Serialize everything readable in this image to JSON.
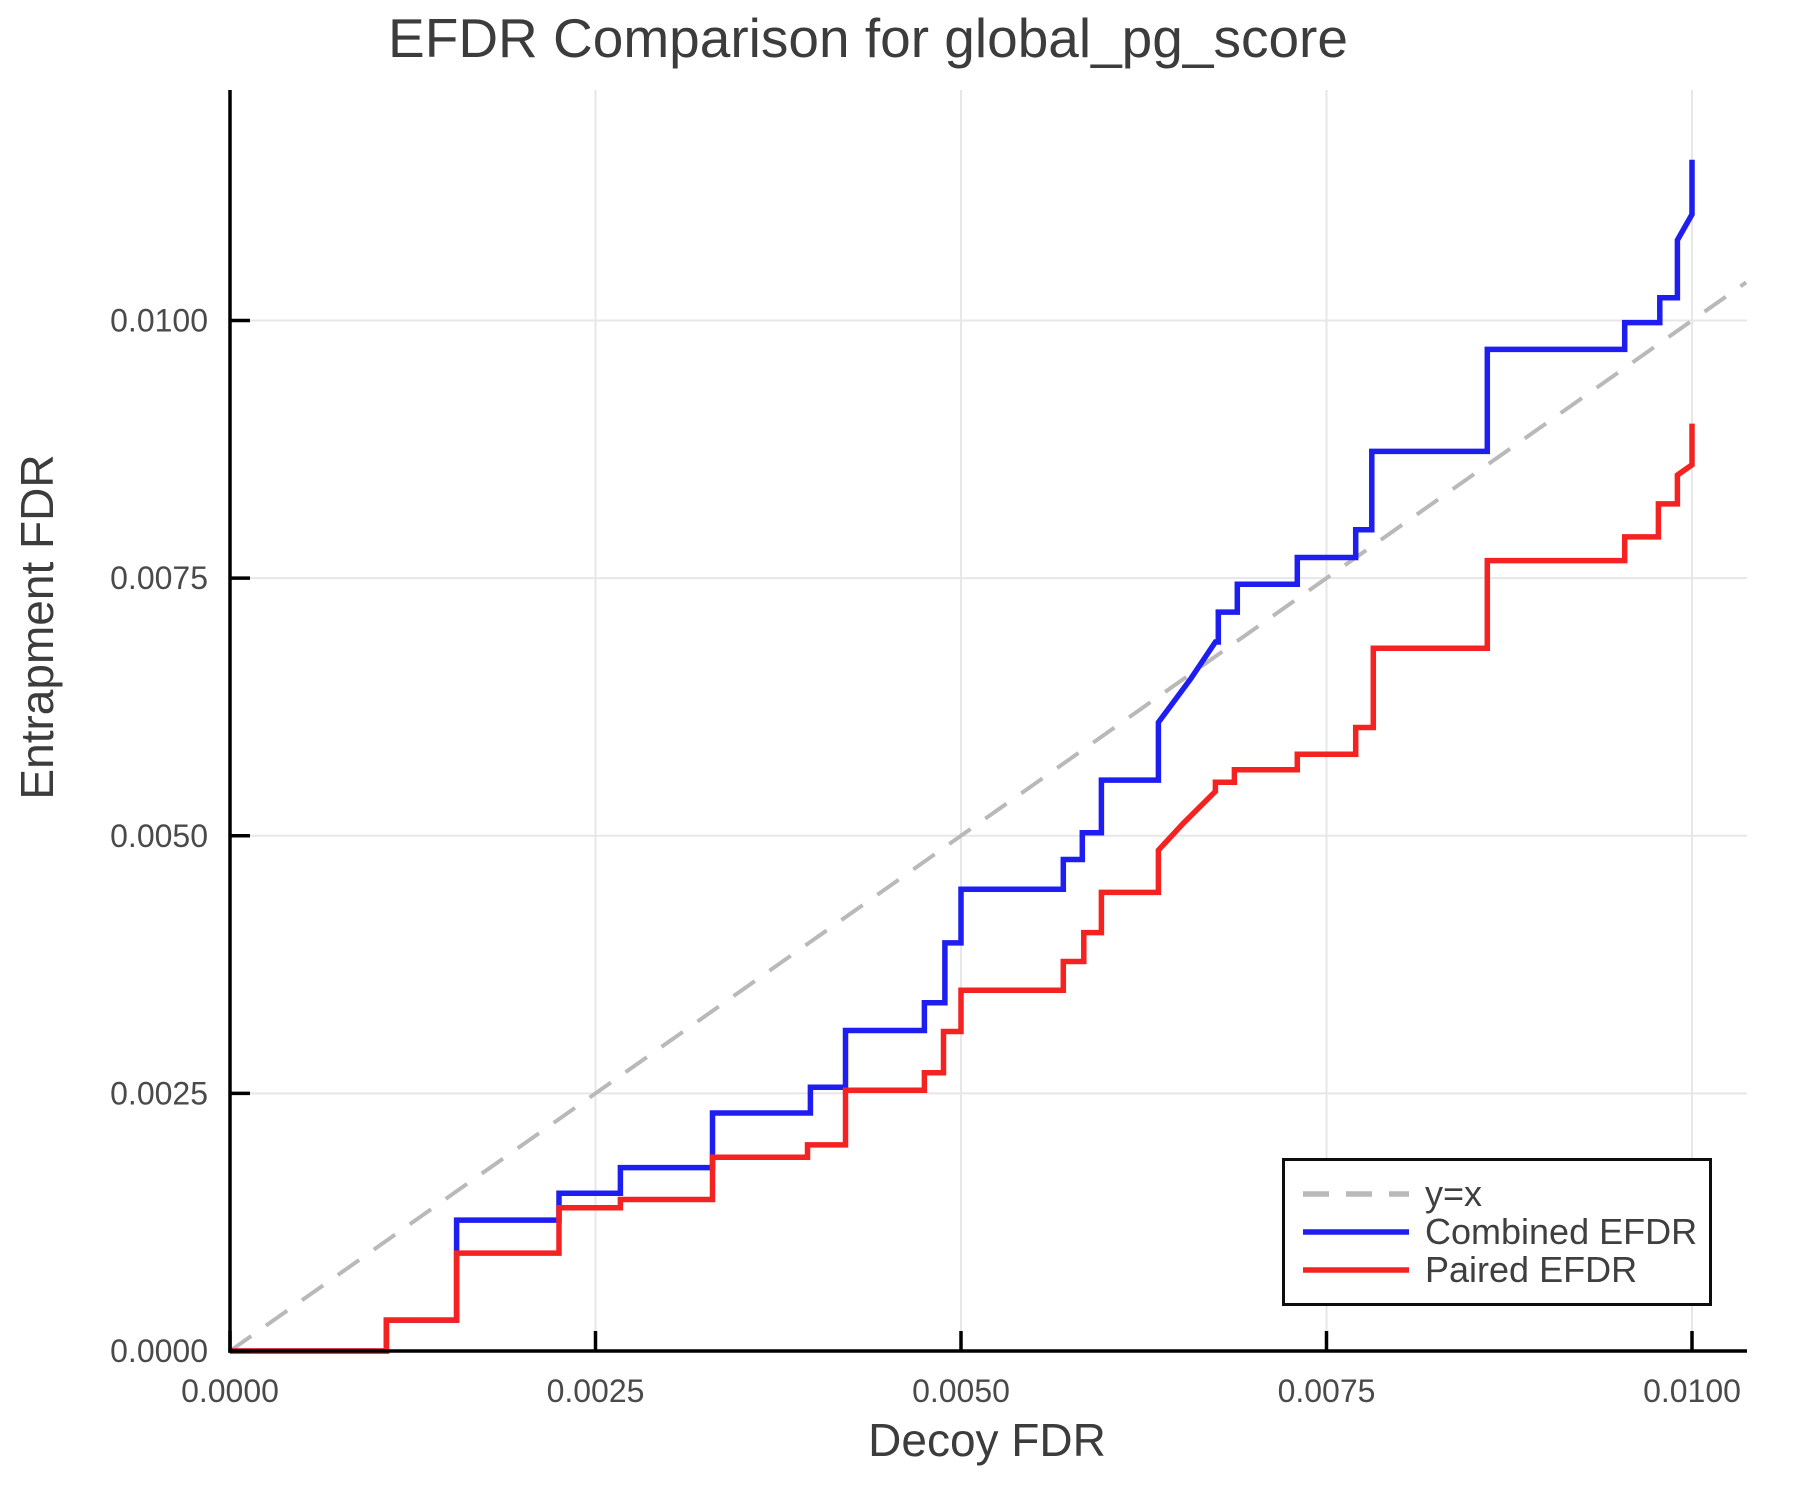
{
  "title": "EFDR Comparison for global_pg_score",
  "axes": {
    "x": {
      "label": "Decoy FDR",
      "ticks": [
        "0.0000",
        "0.0025",
        "0.0050",
        "0.0075",
        "0.0100"
      ],
      "tick_values": [
        0,
        0.0025,
        0.005,
        0.0075,
        0.01
      ]
    },
    "y": {
      "label": "Entrapment FDR",
      "ticks": [
        "0.0000",
        "0.0025",
        "0.0050",
        "0.0075",
        "0.0100"
      ],
      "tick_values": [
        0,
        0.0025,
        0.005,
        0.0075,
        0.01
      ]
    }
  },
  "colors": {
    "grid": "#e7e7e7",
    "axis": "#000000",
    "tick_text": "#4a4a4a",
    "title_text": "#3c3c3c",
    "identity": "#b9b9b9",
    "combined": "#1e1ef0",
    "paired": "#f52222"
  },
  "legend": {
    "items": [
      {
        "label": "y=x",
        "color": "#b9b9b9",
        "dash": true
      },
      {
        "label": "Combined EFDR",
        "color": "#1e1ef0",
        "dash": false
      },
      {
        "label": "Paired EFDR",
        "color": "#f52222",
        "dash": false
      }
    ]
  },
  "chart_data": {
    "type": "line",
    "title": "EFDR Comparison for global_pg_score",
    "xlabel": "Decoy FDR",
    "ylabel": "Entrapment FDR",
    "xlim": [
      0,
      0.01037
    ],
    "ylim": [
      0,
      0.01224
    ],
    "grid": true,
    "legend_position": "bottom-right",
    "series": [
      {
        "name": "y=x",
        "style": "dashed",
        "color": "#b9b9b9",
        "points": [
          [
            0,
            0
          ],
          [
            0.01037,
            0.01037
          ]
        ]
      },
      {
        "name": "Combined EFDR",
        "style": "solid",
        "color": "#1e1ef0",
        "points": [
          [
            0,
            0
          ],
          [
            0.00107,
            0
          ],
          [
            0.00107,
            0.0003
          ],
          [
            0.00155,
            0.0003
          ],
          [
            0.00155,
            0.00127
          ],
          [
            0.00225,
            0.00127
          ],
          [
            0.00225,
            0.00153
          ],
          [
            0.00267,
            0.00153
          ],
          [
            0.00267,
            0.00178
          ],
          [
            0.0033,
            0.00178
          ],
          [
            0.0033,
            0.00231
          ],
          [
            0.00397,
            0.00231
          ],
          [
            0.00397,
            0.00256
          ],
          [
            0.00421,
            0.00256
          ],
          [
            0.00421,
            0.00311
          ],
          [
            0.00475,
            0.00311
          ],
          [
            0.00475,
            0.00338
          ],
          [
            0.00489,
            0.00338
          ],
          [
            0.00489,
            0.00396
          ],
          [
            0.005,
            0.00396
          ],
          [
            0.005,
            0.00448
          ],
          [
            0.0057,
            0.00448
          ],
          [
            0.0057,
            0.00477
          ],
          [
            0.00583,
            0.00477
          ],
          [
            0.00583,
            0.00503
          ],
          [
            0.00596,
            0.00503
          ],
          [
            0.00596,
            0.00554
          ],
          [
            0.00635,
            0.00554
          ],
          [
            0.00635,
            0.0061
          ],
          [
            0.00657,
            0.00652
          ],
          [
            0.00674,
            0.00688
          ],
          [
            0.00676,
            0.00688
          ],
          [
            0.00676,
            0.00717
          ],
          [
            0.00689,
            0.00717
          ],
          [
            0.00689,
            0.00744
          ],
          [
            0.0073,
            0.00744
          ],
          [
            0.0073,
            0.0077
          ],
          [
            0.0077,
            0.0077
          ],
          [
            0.0077,
            0.00797
          ],
          [
            0.00781,
            0.00797
          ],
          [
            0.00781,
            0.00873
          ],
          [
            0.0086,
            0.00873
          ],
          [
            0.0086,
            0.00972
          ],
          [
            0.00954,
            0.00972
          ],
          [
            0.00954,
            0.00998
          ],
          [
            0.00978,
            0.00998
          ],
          [
            0.00978,
            0.01022
          ],
          [
            0.0099,
            0.01022
          ],
          [
            0.0099,
            0.01078
          ],
          [
            0.01,
            0.01103
          ],
          [
            0.01,
            0.01156
          ]
        ]
      },
      {
        "name": "Paired EFDR",
        "style": "solid",
        "color": "#f52222",
        "points": [
          [
            0,
            0
          ],
          [
            0.00107,
            0
          ],
          [
            0.00107,
            0.0003
          ],
          [
            0.00155,
            0.0003
          ],
          [
            0.00155,
            0.00095
          ],
          [
            0.00225,
            0.00095
          ],
          [
            0.00225,
            0.00139
          ],
          [
            0.00267,
            0.00139
          ],
          [
            0.00267,
            0.00147
          ],
          [
            0.0033,
            0.00147
          ],
          [
            0.0033,
            0.00188
          ],
          [
            0.00395,
            0.00188
          ],
          [
            0.00395,
            0.002
          ],
          [
            0.00421,
            0.002
          ],
          [
            0.00421,
            0.00253
          ],
          [
            0.00475,
            0.00253
          ],
          [
            0.00475,
            0.0027
          ],
          [
            0.00488,
            0.0027
          ],
          [
            0.00488,
            0.0031
          ],
          [
            0.005,
            0.0031
          ],
          [
            0.005,
            0.0035
          ],
          [
            0.0057,
            0.0035
          ],
          [
            0.0057,
            0.00378
          ],
          [
            0.00584,
            0.00378
          ],
          [
            0.00584,
            0.00406
          ],
          [
            0.00596,
            0.00406
          ],
          [
            0.00596,
            0.00445
          ],
          [
            0.00635,
            0.00445
          ],
          [
            0.00635,
            0.00486
          ],
          [
            0.00652,
            0.00512
          ],
          [
            0.00674,
            0.00543
          ],
          [
            0.00674,
            0.00552
          ],
          [
            0.00687,
            0.00552
          ],
          [
            0.00687,
            0.00564
          ],
          [
            0.0073,
            0.00564
          ],
          [
            0.0073,
            0.00579
          ],
          [
            0.0077,
            0.00579
          ],
          [
            0.0077,
            0.00605
          ],
          [
            0.00782,
            0.00605
          ],
          [
            0.00782,
            0.00682
          ],
          [
            0.0086,
            0.00682
          ],
          [
            0.0086,
            0.00767
          ],
          [
            0.00954,
            0.00767
          ],
          [
            0.00954,
            0.0079
          ],
          [
            0.00977,
            0.0079
          ],
          [
            0.00977,
            0.00822
          ],
          [
            0.0099,
            0.00822
          ],
          [
            0.0099,
            0.0085
          ],
          [
            0.01,
            0.0086
          ],
          [
            0.01,
            0.009
          ]
        ]
      }
    ]
  }
}
